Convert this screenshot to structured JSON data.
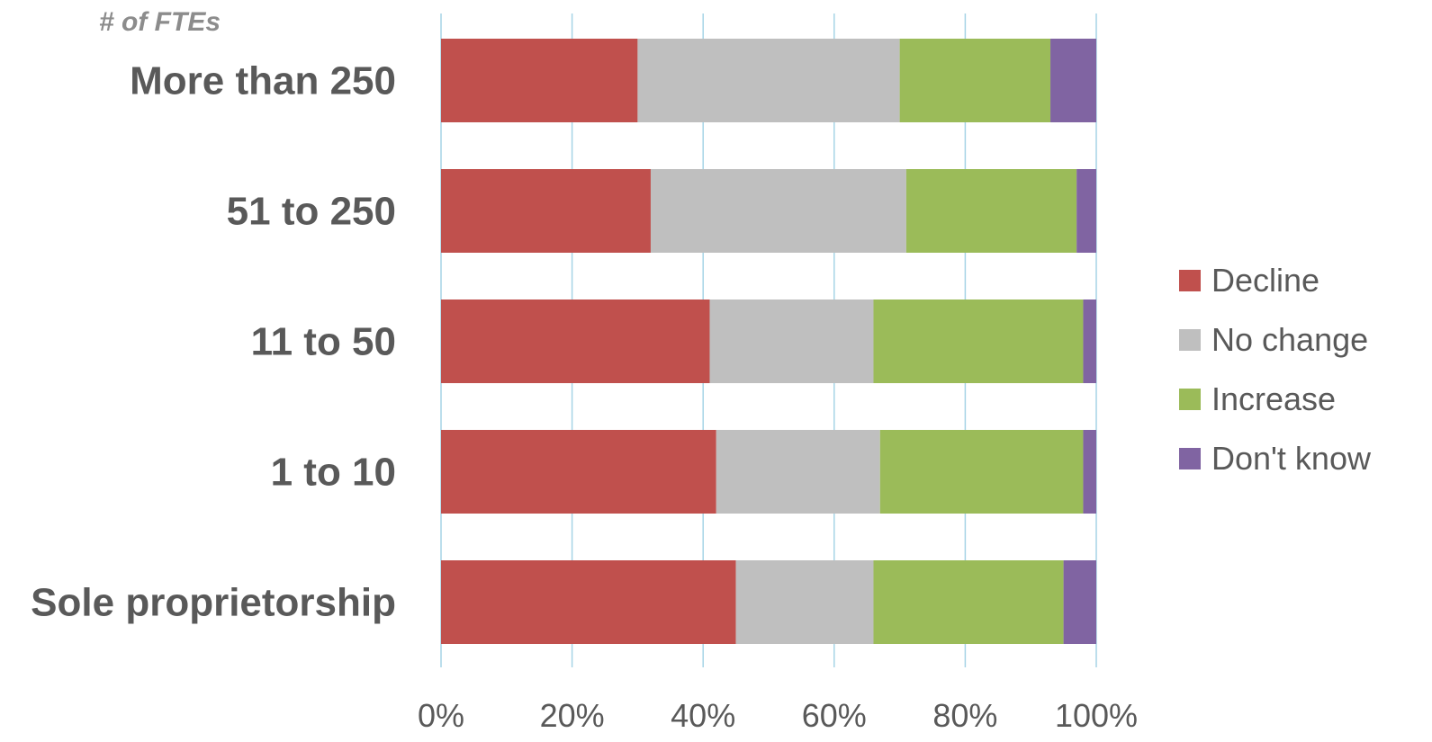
{
  "chart_data": {
    "type": "bar",
    "orientation": "horizontal",
    "stacked": "percent",
    "y_axis_title": "# of FTEs",
    "categories": [
      "More than 250",
      "51 to 250",
      "11 to 50",
      "1 to 10",
      "Sole proprietorship"
    ],
    "series": [
      {
        "name": "Decline",
        "color": "#c0504d",
        "values": [
          30,
          32,
          41,
          42,
          45
        ]
      },
      {
        "name": "No change",
        "color": "#bfbfbf",
        "values": [
          40,
          39,
          25,
          25,
          21
        ]
      },
      {
        "name": "Increase",
        "color": "#9bbb59",
        "values": [
          23,
          26,
          32,
          31,
          29
        ]
      },
      {
        "name": "Don't know",
        "color": "#8064a2",
        "values": [
          7,
          3,
          2,
          2,
          5
        ]
      }
    ],
    "x_ticks": [
      "0%",
      "20%",
      "40%",
      "60%",
      "80%",
      "100%"
    ],
    "xlim": [
      0,
      100
    ],
    "grid": true,
    "gridline_color": "#a6d4e6",
    "legend_position": "right"
  }
}
